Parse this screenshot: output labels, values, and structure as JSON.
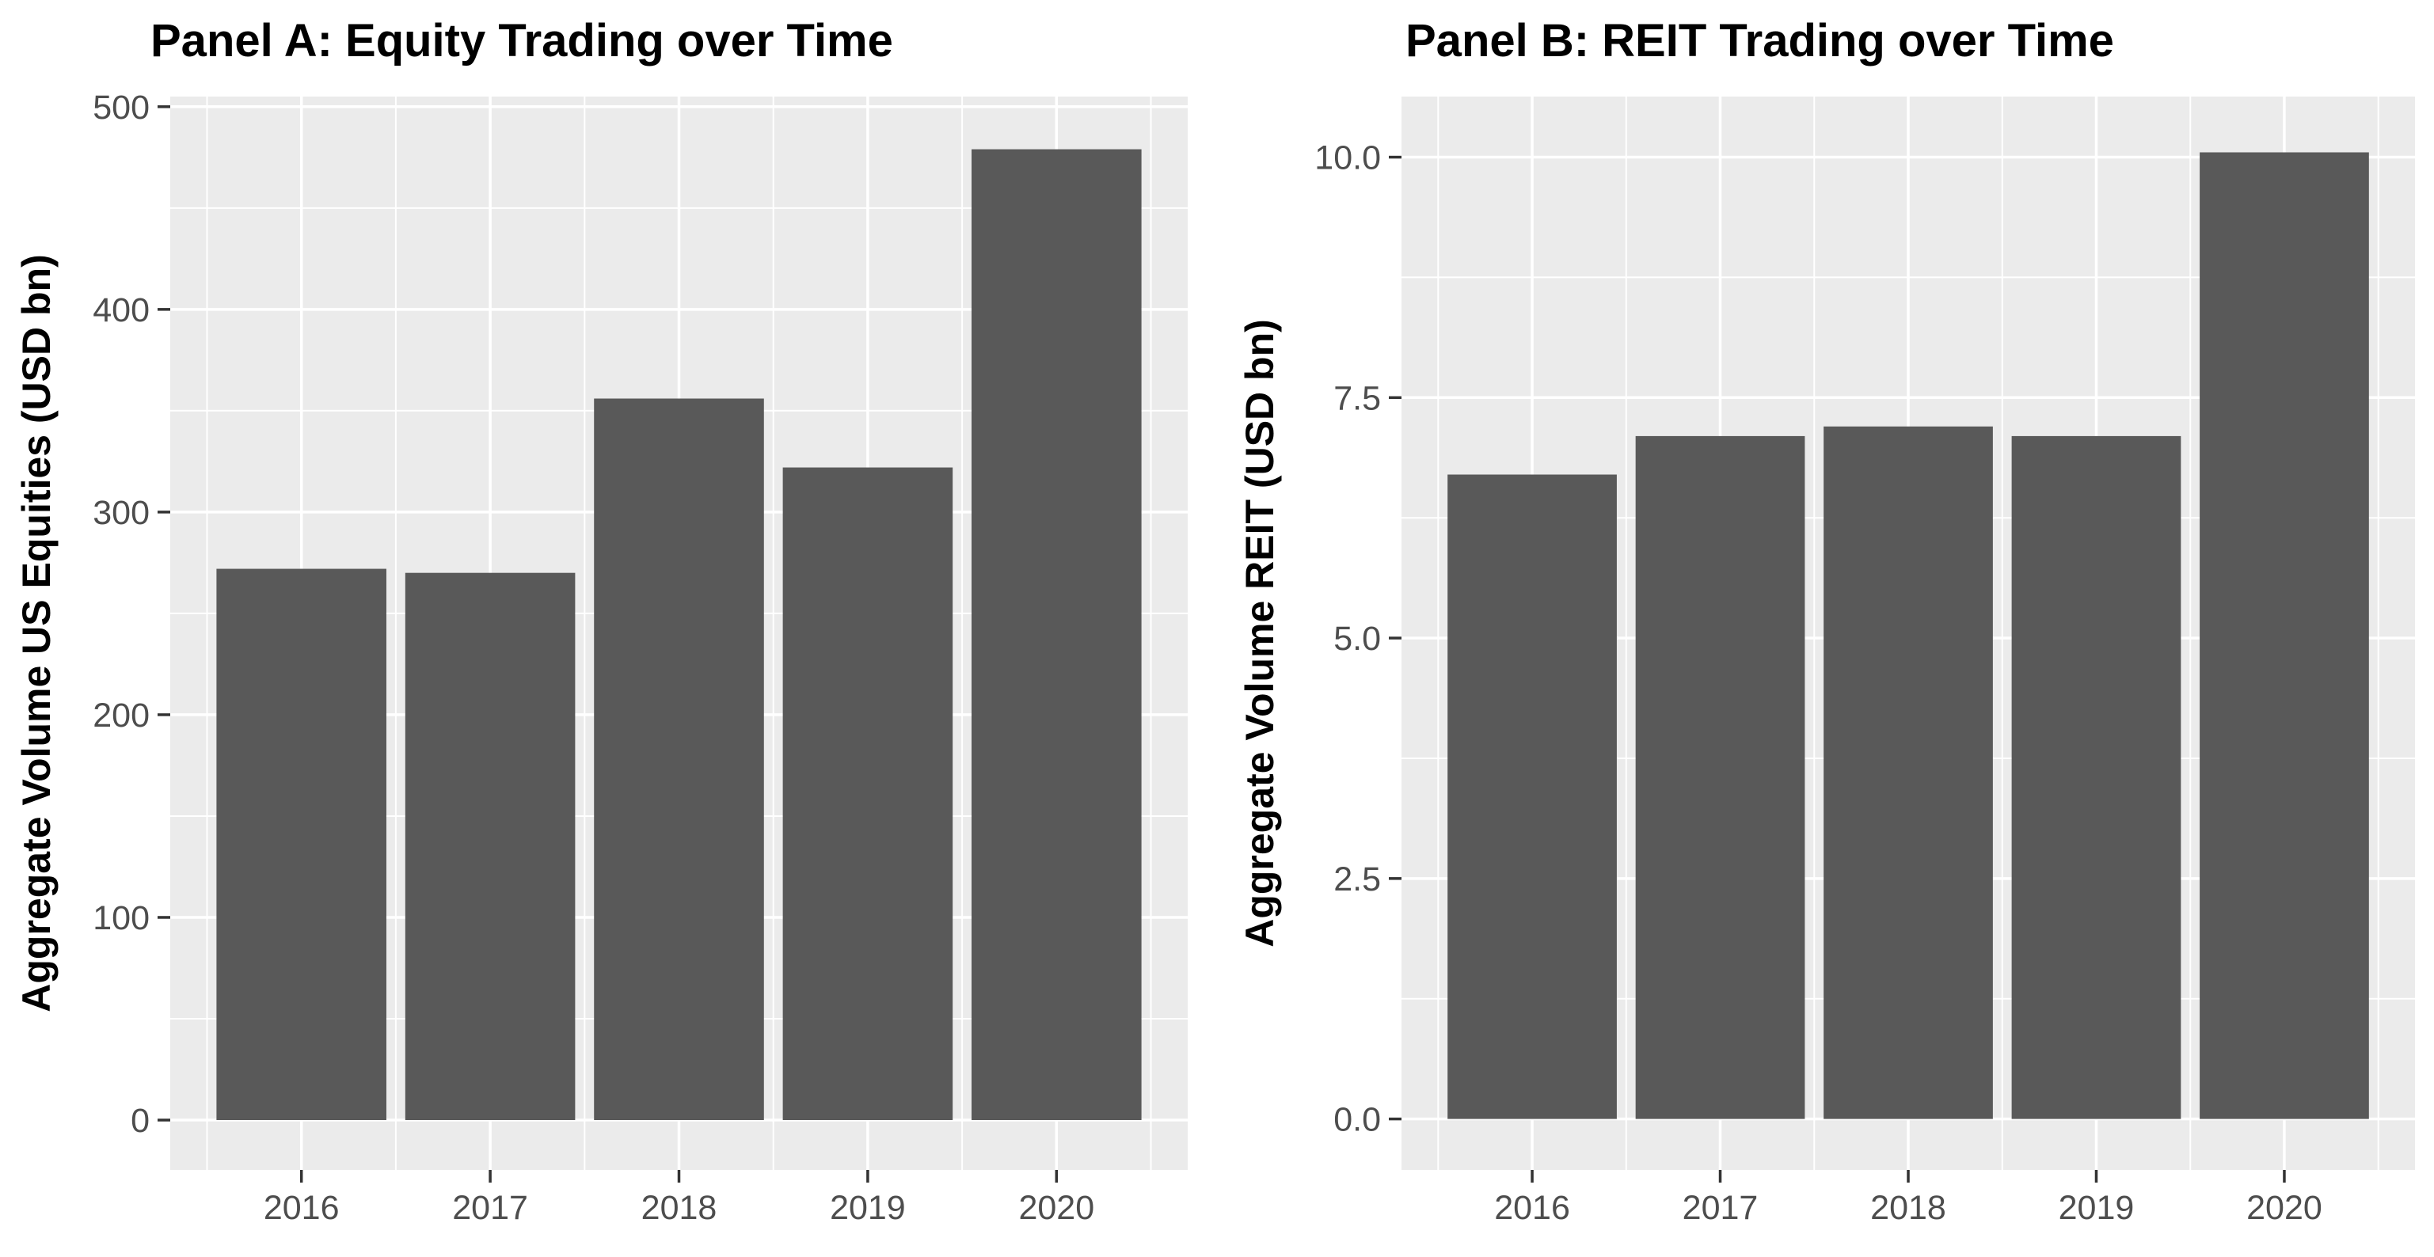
{
  "page": {
    "background": "#FFFFFF"
  },
  "style": {
    "bar_fill": "#595959",
    "panel_background": "#EBEBEB",
    "grid_color": "#FFFFFF",
    "tick_label_color": "#4D4D4D",
    "tick_mark_color": "#333333",
    "title_color": "#000000",
    "axis_title_color": "#000000"
  },
  "chart_data": [
    {
      "type": "bar",
      "title": "Panel A: Equity Trading over Time",
      "ylabel": "Aggregate Volume US Equities (USD bn)",
      "xlabel": "",
      "categories": [
        "2016",
        "2017",
        "2018",
        "2019",
        "2020"
      ],
      "x": [
        2016,
        2017,
        2018,
        2019,
        2020
      ],
      "values": [
        272,
        270,
        356,
        322,
        479
      ],
      "bar_width": 0.9,
      "y_major_ticks": [
        0,
        100,
        200,
        300,
        400,
        500
      ],
      "y_tick_labels": [
        "0",
        "100",
        "200",
        "300",
        "400",
        "500"
      ],
      "y_minor_ticks": [
        50,
        150,
        250,
        350,
        450
      ],
      "x_minor_ticks": [
        2015.5,
        2016.5,
        2017.5,
        2018.5,
        2019.5,
        2020.5
      ],
      "ylim": [
        -24.6,
        505
      ],
      "xlim": [
        2015.305,
        2020.695
      ],
      "grid": true,
      "legend": "none"
    },
    {
      "type": "bar",
      "title": "Panel B: REIT Trading over Time",
      "ylabel": "Aggregate Volume REIT (USD bn)",
      "xlabel": "",
      "categories": [
        "2016",
        "2017",
        "2018",
        "2019",
        "2020"
      ],
      "x": [
        2016,
        2017,
        2018,
        2019,
        2020
      ],
      "values": [
        6.7,
        7.1,
        7.2,
        7.1,
        10.05
      ],
      "bar_width": 0.9,
      "y_major_ticks": [
        0,
        2.5,
        5,
        7.5,
        10
      ],
      "y_tick_labels": [
        "0.0",
        "2.5",
        "5.0",
        "7.5",
        "10.0"
      ],
      "y_minor_ticks": [
        1.25,
        3.75,
        6.25,
        8.75
      ],
      "x_minor_ticks": [
        2015.5,
        2016.5,
        2017.5,
        2018.5,
        2019.5,
        2020.5
      ],
      "ylim": [
        -0.53,
        10.63
      ],
      "xlim": [
        2015.305,
        2020.695
      ],
      "grid": true,
      "legend": "none"
    }
  ]
}
